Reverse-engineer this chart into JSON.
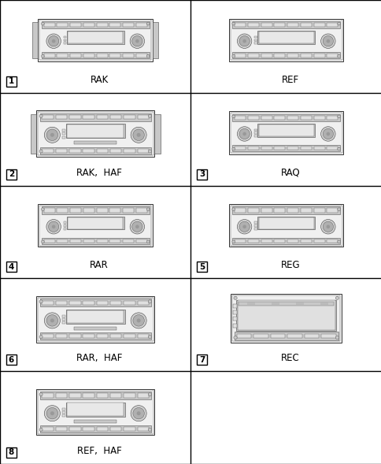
{
  "background_color": "#ffffff",
  "grid_color": "#000000",
  "cells": [
    {
      "row": 0,
      "col": 0,
      "label": "RAK",
      "number": "1",
      "type": "RAK"
    },
    {
      "row": 0,
      "col": 1,
      "label": "REF",
      "number": "",
      "type": "REF"
    },
    {
      "row": 1,
      "col": 0,
      "label": "RAK,  HAF",
      "number": "2",
      "type": "RAK_HAF"
    },
    {
      "row": 1,
      "col": 1,
      "label": "RAQ",
      "number": "3",
      "type": "RAQ"
    },
    {
      "row": 2,
      "col": 0,
      "label": "RAR",
      "number": "4",
      "type": "RAR"
    },
    {
      "row": 2,
      "col": 1,
      "label": "REG",
      "number": "5",
      "type": "REG"
    },
    {
      "row": 3,
      "col": 0,
      "label": "RAR,  HAF",
      "number": "6",
      "type": "RAR_HAF"
    },
    {
      "row": 3,
      "col": 1,
      "label": "REC",
      "number": "7",
      "type": "REC"
    },
    {
      "row": 4,
      "col": 0,
      "label": "REF,  HAF",
      "number": "8",
      "type": "REF_HAF"
    },
    {
      "row": 4,
      "col": 1,
      "label": "",
      "number": "",
      "type": "empty"
    }
  ],
  "n_rows": 5,
  "n_cols": 2,
  "label_fontsize": 8.5,
  "number_fontsize": 7.5
}
